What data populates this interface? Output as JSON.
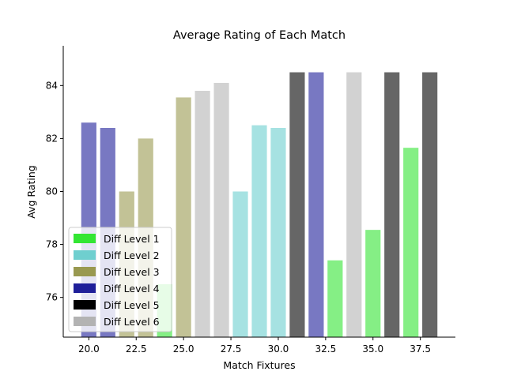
{
  "chart_data": {
    "type": "bar",
    "title": "Average Rating of Each Match",
    "xlabel": "Match Fixtures",
    "ylabel": "Avg Rating",
    "xlim": [
      18.65,
      39.35
    ],
    "ylim": [
      74.5,
      85.5
    ],
    "xticks": [
      20.0,
      22.5,
      25.0,
      27.5,
      30.0,
      32.5,
      35.0,
      37.5
    ],
    "xtick_labels": [
      "20.0",
      "22.5",
      "25.0",
      "27.5",
      "30.0",
      "32.5",
      "35.0",
      "37.5"
    ],
    "yticks": [
      76,
      78,
      80,
      82,
      84
    ],
    "ytick_labels": [
      "76",
      "78",
      "80",
      "82",
      "84"
    ],
    "grid": false,
    "legend": "lower-left",
    "legend_entries": [
      {
        "label": "Diff Level 1",
        "color": "#33e633"
      },
      {
        "label": "Diff Level 2",
        "color": "#6fcfcf"
      },
      {
        "label": "Diff Level 3",
        "color": "#999950"
      },
      {
        "label": "Diff Level 4",
        "color": "#1f1f99"
      },
      {
        "label": "Diff Level 5",
        "color": "#000000"
      },
      {
        "label": "Diff Level 6",
        "color": "#b3b3b3"
      }
    ],
    "bar_colors": {
      "1": "#85ef85",
      "2": "#a6e2e2",
      "3": "#c2c296",
      "4": "#7878c2",
      "5": "#666666",
      "6": "#d2d2d2"
    },
    "bars": [
      {
        "x": 20,
        "value": 82.6,
        "level": 4
      },
      {
        "x": 21,
        "value": 82.4,
        "level": 4
      },
      {
        "x": 22,
        "value": 80.0,
        "level": 3
      },
      {
        "x": 23,
        "value": 82.0,
        "level": 3
      },
      {
        "x": 24,
        "value": 76.5,
        "level": 1
      },
      {
        "x": 25,
        "value": 83.55,
        "level": 3
      },
      {
        "x": 26,
        "value": 83.8,
        "level": 6
      },
      {
        "x": 27,
        "value": 84.1,
        "level": 6
      },
      {
        "x": 28,
        "value": 80.0,
        "level": 2
      },
      {
        "x": 29,
        "value": 82.5,
        "level": 2
      },
      {
        "x": 30,
        "value": 82.4,
        "level": 2
      },
      {
        "x": 31,
        "value": 84.5,
        "level": 5
      },
      {
        "x": 32,
        "value": 84.5,
        "level": 4
      },
      {
        "x": 33,
        "value": 77.4,
        "level": 1
      },
      {
        "x": 34,
        "value": 84.5,
        "level": 6
      },
      {
        "x": 35,
        "value": 78.55,
        "level": 1
      },
      {
        "x": 36,
        "value": 84.5,
        "level": 5
      },
      {
        "x": 37,
        "value": 81.65,
        "level": 1
      },
      {
        "x": 38,
        "value": 84.5,
        "level": 5
      }
    ]
  }
}
